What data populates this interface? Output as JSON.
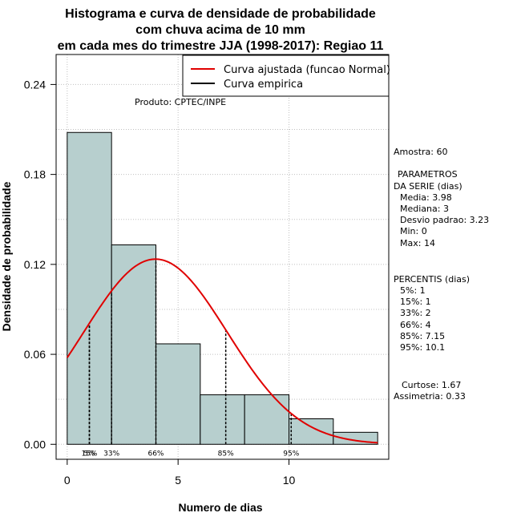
{
  "chart_data": {
    "type": "bar",
    "title": [
      "Histograma e curva de densidade de probabilidade",
      "com chuva acima de 10 mm",
      "em cada mes do trimestre JJA (1998-2017): Regiao 11"
    ],
    "xlabel": "Numero de dias",
    "ylabel": "Densidade de probabilidade",
    "xlim": [
      -0.5,
      14.5
    ],
    "ylim": [
      -0.01,
      0.26
    ],
    "x_ticks": [
      0,
      5,
      10
    ],
    "y_ticks": [
      0.0,
      0.06,
      0.12,
      0.18,
      0.24
    ],
    "y_tick_labels": [
      "0.00",
      "0.06",
      "0.12",
      "0.18",
      "0.24"
    ],
    "bins": [
      {
        "x0": 0,
        "x1": 2,
        "density": 0.208
      },
      {
        "x0": 2,
        "x1": 4,
        "density": 0.133
      },
      {
        "x0": 4,
        "x1": 6,
        "density": 0.067
      },
      {
        "x0": 6,
        "x1": 8,
        "density": 0.033
      },
      {
        "x0": 8,
        "x1": 10,
        "density": 0.033
      },
      {
        "x0": 10,
        "x1": 12,
        "density": 0.017
      },
      {
        "x0": 12,
        "x1": 14,
        "density": 0.008
      }
    ],
    "normal_fit": {
      "mean": 3.98,
      "sd": 3.23,
      "x_range": [
        0,
        14
      ]
    },
    "percentile_lines": [
      {
        "x": 1,
        "label": "5%"
      },
      {
        "x": 1,
        "label": "15%"
      },
      {
        "x": 2,
        "label": "33%"
      },
      {
        "x": 4,
        "label": "66%"
      },
      {
        "x": 7.15,
        "label": "85%"
      },
      {
        "x": 10.1,
        "label": "95%"
      }
    ],
    "legend": [
      {
        "label": "Curva ajustada (funcao Normal)",
        "color": "#e00000"
      },
      {
        "label": "Curva empirica",
        "color": "#000000"
      }
    ],
    "legend_position": "top-right",
    "grid": true,
    "bar_fill": "#b7cfce",
    "product_label": "Produto: CPTEC/INPE"
  },
  "stats": {
    "sample": "Amostra: 60",
    "params_title_1": "PARAMETROS",
    "params_title_2": "DA SERIE (dias)",
    "media": "Media: 3.98",
    "mediana": "Mediana: 3",
    "desvio": "Desvio padrao: 3.23",
    "min": "Min: 0",
    "max": "Max: 14",
    "pct_title": "PERCENTIS (dias)",
    "p5": "5%: 1",
    "p15": "15%: 1",
    "p33": "33%: 2",
    "p66": "66%: 4",
    "p85": "85%: 7.15",
    "p95": "95%: 10.1",
    "curtose": "Curtose: 1.67",
    "assimetria": "Assimetria: 0.33"
  }
}
